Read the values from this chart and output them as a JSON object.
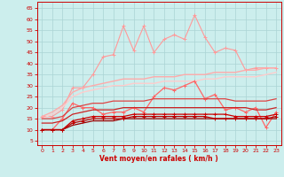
{
  "xlabel": "Vent moyen/en rafales ( km/h )",
  "xlim": [
    -0.5,
    23.5
  ],
  "ylim": [
    3,
    68
  ],
  "yticks": [
    5,
    10,
    15,
    20,
    25,
    30,
    35,
    40,
    45,
    50,
    55,
    60,
    65
  ],
  "xticks": [
    0,
    1,
    2,
    3,
    4,
    5,
    6,
    7,
    8,
    9,
    10,
    11,
    12,
    13,
    14,
    15,
    16,
    17,
    18,
    19,
    20,
    21,
    22,
    23
  ],
  "bg_color": "#cceeed",
  "grid_color": "#aad4d4",
  "lines": [
    {
      "color": "#ff9999",
      "linewidth": 0.8,
      "marker": "+",
      "markersize": 3,
      "values": [
        16,
        16,
        19,
        29,
        29,
        35,
        43,
        44,
        57,
        46,
        57,
        45,
        51,
        53,
        51,
        62,
        52,
        45,
        47,
        46,
        37,
        38,
        38,
        38
      ]
    },
    {
      "color": "#ffaaaa",
      "linewidth": 1.0,
      "marker": null,
      "values": [
        16,
        18,
        21,
        27,
        29,
        30,
        31,
        32,
        33,
        33,
        33,
        34,
        34,
        34,
        35,
        35,
        35,
        36,
        36,
        36,
        37,
        37,
        38,
        38
      ]
    },
    {
      "color": "#ffcccc",
      "linewidth": 1.0,
      "marker": null,
      "values": [
        15,
        17,
        20,
        25,
        27,
        28,
        29,
        30,
        30,
        31,
        31,
        31,
        32,
        32,
        32,
        32,
        33,
        33,
        34,
        34,
        34,
        34,
        35,
        36
      ]
    },
    {
      "color": "#ff6666",
      "linewidth": 0.9,
      "marker": "+",
      "markersize": 3,
      "values": [
        10,
        10,
        15,
        22,
        20,
        20,
        17,
        18,
        18,
        20,
        18,
        25,
        29,
        28,
        30,
        32,
        24,
        26,
        19,
        20,
        18,
        20,
        11,
        18
      ]
    },
    {
      "color": "#dd4444",
      "linewidth": 0.9,
      "marker": null,
      "values": [
        15,
        15,
        16,
        20,
        21,
        22,
        22,
        23,
        23,
        23,
        23,
        24,
        24,
        24,
        24,
        24,
        24,
        24,
        24,
        23,
        23,
        23,
        23,
        24
      ]
    },
    {
      "color": "#cc2222",
      "linewidth": 0.9,
      "marker": null,
      "values": [
        13,
        13,
        14,
        17,
        18,
        19,
        19,
        19,
        20,
        20,
        20,
        20,
        20,
        20,
        20,
        20,
        20,
        20,
        20,
        20,
        20,
        19,
        19,
        20
      ]
    },
    {
      "color": "#cc0000",
      "linewidth": 0.9,
      "marker": "+",
      "markersize": 3,
      "values": [
        10,
        10,
        10,
        14,
        15,
        16,
        16,
        16,
        16,
        17,
        17,
        17,
        17,
        17,
        17,
        17,
        17,
        17,
        17,
        16,
        16,
        16,
        16,
        17
      ]
    },
    {
      "color": "#990000",
      "linewidth": 0.9,
      "marker": null,
      "values": [
        10,
        10,
        10,
        12,
        13,
        14,
        14,
        14,
        15,
        15,
        15,
        15,
        15,
        15,
        15,
        15,
        15,
        15,
        15,
        15,
        15,
        15,
        15,
        15
      ]
    },
    {
      "color": "#bb0000",
      "linewidth": 0.9,
      "marker": "+",
      "markersize": 3,
      "values": [
        10,
        10,
        10,
        13,
        14,
        15,
        15,
        15,
        15,
        16,
        16,
        16,
        16,
        16,
        16,
        16,
        16,
        15,
        15,
        15,
        15,
        15,
        15,
        16
      ]
    }
  ]
}
